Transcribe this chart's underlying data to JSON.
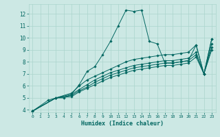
{
  "xlabel": "Humidex (Indice chaleur)",
  "bg_color": "#cce8e4",
  "grid_color": "#aad4cc",
  "line_color": "#006660",
  "xlim": [
    -0.5,
    23.5
  ],
  "ylim": [
    3.8,
    12.8
  ],
  "yticks": [
    4,
    5,
    6,
    7,
    8,
    9,
    10,
    11,
    12
  ],
  "xticks": [
    0,
    1,
    2,
    3,
    4,
    5,
    6,
    7,
    8,
    9,
    10,
    11,
    12,
    13,
    14,
    15,
    16,
    17,
    18,
    19,
    20,
    21,
    22,
    23
  ],
  "series": [
    {
      "x": [
        0,
        2,
        3,
        4,
        5,
        6,
        7,
        8,
        9,
        10,
        11,
        12,
        13,
        14,
        15,
        16,
        17,
        18,
        19,
        20,
        21,
        22,
        23
      ],
      "y": [
        3.9,
        4.8,
        5.0,
        5.0,
        5.3,
        6.1,
        7.2,
        7.6,
        8.6,
        9.7,
        11.0,
        12.3,
        12.2,
        12.3,
        9.7,
        9.5,
        7.9,
        7.9,
        8.0,
        8.1,
        9.4,
        7.0,
        9.9
      ]
    },
    {
      "x": [
        0,
        3,
        5,
        6,
        7,
        8,
        9,
        10,
        11,
        12,
        13,
        14,
        15,
        16,
        17,
        18,
        19,
        20,
        21,
        22,
        23
      ],
      "y": [
        3.9,
        5.0,
        5.4,
        6.0,
        6.5,
        6.8,
        7.1,
        7.4,
        7.7,
        8.0,
        8.2,
        8.3,
        8.4,
        8.5,
        8.6,
        8.6,
        8.7,
        8.8,
        9.4,
        7.0,
        9.9
      ]
    },
    {
      "x": [
        0,
        3,
        5,
        6,
        7,
        8,
        9,
        10,
        11,
        12,
        13,
        14,
        15,
        16,
        17,
        18,
        19,
        20,
        21,
        22,
        23
      ],
      "y": [
        3.9,
        5.0,
        5.3,
        5.7,
        6.1,
        6.5,
        6.8,
        7.1,
        7.3,
        7.5,
        7.7,
        7.8,
        7.9,
        8.0,
        8.1,
        8.1,
        8.2,
        8.3,
        8.8,
        7.0,
        9.5
      ]
    },
    {
      "x": [
        0,
        3,
        5,
        6,
        7,
        8,
        9,
        10,
        11,
        12,
        13,
        14,
        15,
        16,
        17,
        18,
        19,
        20,
        21,
        22,
        23
      ],
      "y": [
        3.9,
        5.0,
        5.2,
        5.6,
        5.9,
        6.3,
        6.6,
        6.9,
        7.1,
        7.3,
        7.5,
        7.6,
        7.7,
        7.8,
        7.9,
        7.9,
        8.0,
        8.1,
        8.6,
        7.0,
        9.2
      ]
    },
    {
      "x": [
        0,
        3,
        5,
        6,
        7,
        8,
        9,
        10,
        11,
        12,
        13,
        14,
        15,
        16,
        17,
        18,
        19,
        20,
        21,
        22,
        23
      ],
      "y": [
        3.9,
        5.0,
        5.1,
        5.5,
        5.8,
        6.1,
        6.4,
        6.7,
        6.9,
        7.1,
        7.3,
        7.4,
        7.5,
        7.6,
        7.7,
        7.7,
        7.8,
        7.9,
        8.4,
        7.0,
        9.0
      ]
    }
  ]
}
